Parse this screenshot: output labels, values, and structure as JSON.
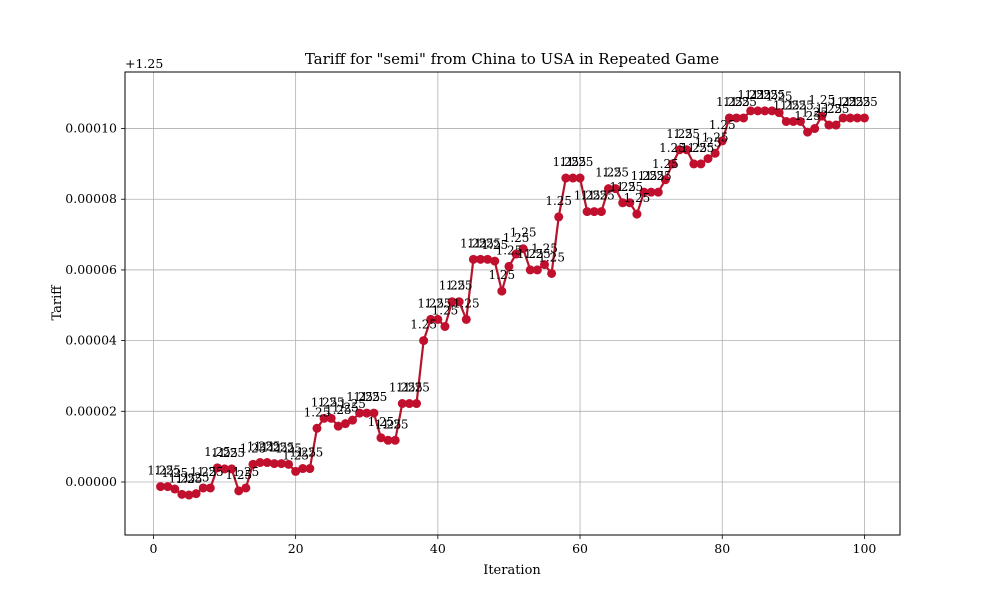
{
  "chart_data": {
    "type": "line",
    "title": "Tariff for \"semi\" from China to USA in Repeated Game",
    "xlabel": "Iteration",
    "ylabel": "Tariff",
    "offset_text": "+1.25",
    "grid": true,
    "xlim": [
      -4,
      105
    ],
    "ylim": [
      -1.5e-05,
      0.000116
    ],
    "xticks": [
      0,
      20,
      40,
      60,
      80,
      100
    ],
    "yticks": [
      0.0,
      2e-05,
      4e-05,
      6e-05,
      8e-05,
      0.0001
    ],
    "ytick_labels": [
      "0.00000",
      "0.00002",
      "0.00004",
      "0.00006",
      "0.00008",
      "0.00010"
    ],
    "point_label": "1.25",
    "colors": {
      "line": "#b5152b",
      "marker": "#c0102e"
    },
    "x": [
      1,
      2,
      3,
      4,
      5,
      6,
      7,
      8,
      9,
      10,
      11,
      12,
      13,
      14,
      15,
      16,
      17,
      18,
      19,
      20,
      21,
      22,
      23,
      24,
      25,
      26,
      27,
      28,
      29,
      30,
      31,
      32,
      33,
      34,
      35,
      36,
      37,
      38,
      39,
      40,
      41,
      42,
      43,
      44,
      45,
      46,
      47,
      48,
      49,
      50,
      51,
      52,
      53,
      54,
      55,
      56,
      57,
      58,
      59,
      60,
      61,
      62,
      63,
      64,
      65,
      66,
      67,
      68,
      69,
      70,
      71,
      72,
      73,
      74,
      75,
      76,
      77,
      78,
      79,
      80,
      81,
      82,
      83,
      84,
      85,
      86,
      87,
      88,
      89,
      90,
      91,
      92,
      93,
      94,
      95,
      96,
      97,
      98,
      99,
      100
    ],
    "values": [
      -1.3e-06,
      -1.3e-06,
      -2e-06,
      -3.5e-06,
      -3.7e-06,
      -3.3e-06,
      -1.7e-06,
      -1.7e-06,
      4e-06,
      3.7e-06,
      3.7e-06,
      -2.5e-06,
      -1.7e-06,
      5e-06,
      5.5e-06,
      5.5e-06,
      5.2e-06,
      5.2e-06,
      5e-06,
      3e-06,
      3.8e-06,
      3.8e-06,
      1.52e-05,
      1.8e-05,
      1.8e-05,
      1.58e-05,
      1.65e-05,
      1.75e-05,
      1.95e-05,
      1.95e-05,
      1.95e-05,
      1.25e-05,
      1.18e-05,
      1.18e-05,
      2.22e-05,
      2.22e-05,
      2.22e-05,
      4e-05,
      4.6e-05,
      4.6e-05,
      4.4e-05,
      5.1e-05,
      5.1e-05,
      4.6e-05,
      6.3e-05,
      6.3e-05,
      6.3e-05,
      6.25e-05,
      5.4e-05,
      6.1e-05,
      6.45e-05,
      6.6e-05,
      6e-05,
      6e-05,
      6.15e-05,
      5.9e-05,
      7.5e-05,
      8.6e-05,
      8.6e-05,
      8.6e-05,
      7.65e-05,
      7.65e-05,
      7.65e-05,
      8.3e-05,
      8.3e-05,
      7.9e-05,
      7.9e-05,
      7.58e-05,
      8.2e-05,
      8.2e-05,
      8.2e-05,
      8.55e-05,
      9e-05,
      9.4e-05,
      9.4e-05,
      9e-05,
      9e-05,
      9.15e-05,
      9.3e-05,
      9.65e-05,
      0.000103,
      0.000103,
      0.000103,
      0.000105,
      0.000105,
      0.000105,
      0.000105,
      0.0001045,
      0.000102,
      0.000102,
      0.000102,
      9.9e-05,
      0.0001,
      0.0001035,
      0.000101,
      0.000101,
      0.000103,
      0.000103,
      0.000103,
      0.000103
    ]
  }
}
